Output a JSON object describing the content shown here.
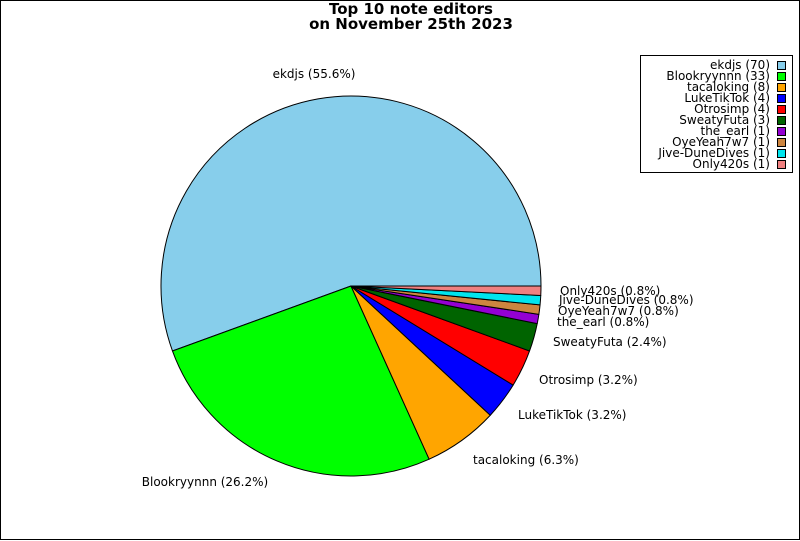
{
  "chart_data": {
    "type": "pie",
    "title": [
      "Top 10 note editors",
      "on November 25th 2023"
    ],
    "slices": [
      {
        "name": "ekdjs",
        "value": 70,
        "percent_label": "ekdjs (55.6%)",
        "legend_label": "ekdjs (70)",
        "color": "#87ceeb"
      },
      {
        "name": "Blookryynnn",
        "value": 33,
        "percent_label": "Blookryynnn (26.2%)",
        "legend_label": "Blookryynnn (33)",
        "color": "#00ff00"
      },
      {
        "name": "tacaloking",
        "value": 8,
        "percent_label": "tacaloking (6.3%)",
        "legend_label": "tacaloking (8)",
        "color": "#ffa500"
      },
      {
        "name": "LukeTikTok",
        "value": 4,
        "percent_label": "LukeTikTok (3.2%)",
        "legend_label": "LukeTikTok (4)",
        "color": "#0000ff"
      },
      {
        "name": "Otrosimp",
        "value": 4,
        "percent_label": "Otrosimp (3.2%)",
        "legend_label": "Otrosimp (4)",
        "color": "#ff0000"
      },
      {
        "name": "SweatyFuta",
        "value": 3,
        "percent_label": "SweatyFuta (2.4%)",
        "legend_label": "SweatyFuta (3)",
        "color": "#006400"
      },
      {
        "name": "the_earl",
        "value": 1,
        "percent_label": "the_earl (0.8%)",
        "legend_label": "the_earl (1)",
        "color": "#9400d3"
      },
      {
        "name": "OyeYeah7w7",
        "value": 1,
        "percent_label": "OyeYeah7w7 (0.8%)",
        "legend_label": "OyeYeah7w7 (1)",
        "color": "#cd853f"
      },
      {
        "name": "Jive-DuneDives",
        "value": 1,
        "percent_label": "Jive-DuneDives (0.8%)",
        "legend_label": "Jive-DuneDives (1)",
        "color": "#00e5ee"
      },
      {
        "name": "Only420s",
        "value": 1,
        "percent_label": "Only420s (0.8%)",
        "legend_label": "Only420s (1)",
        "color": "#f08080"
      }
    ],
    "legend_position": "top-right",
    "start_angle": "east, counter-clockwise"
  }
}
